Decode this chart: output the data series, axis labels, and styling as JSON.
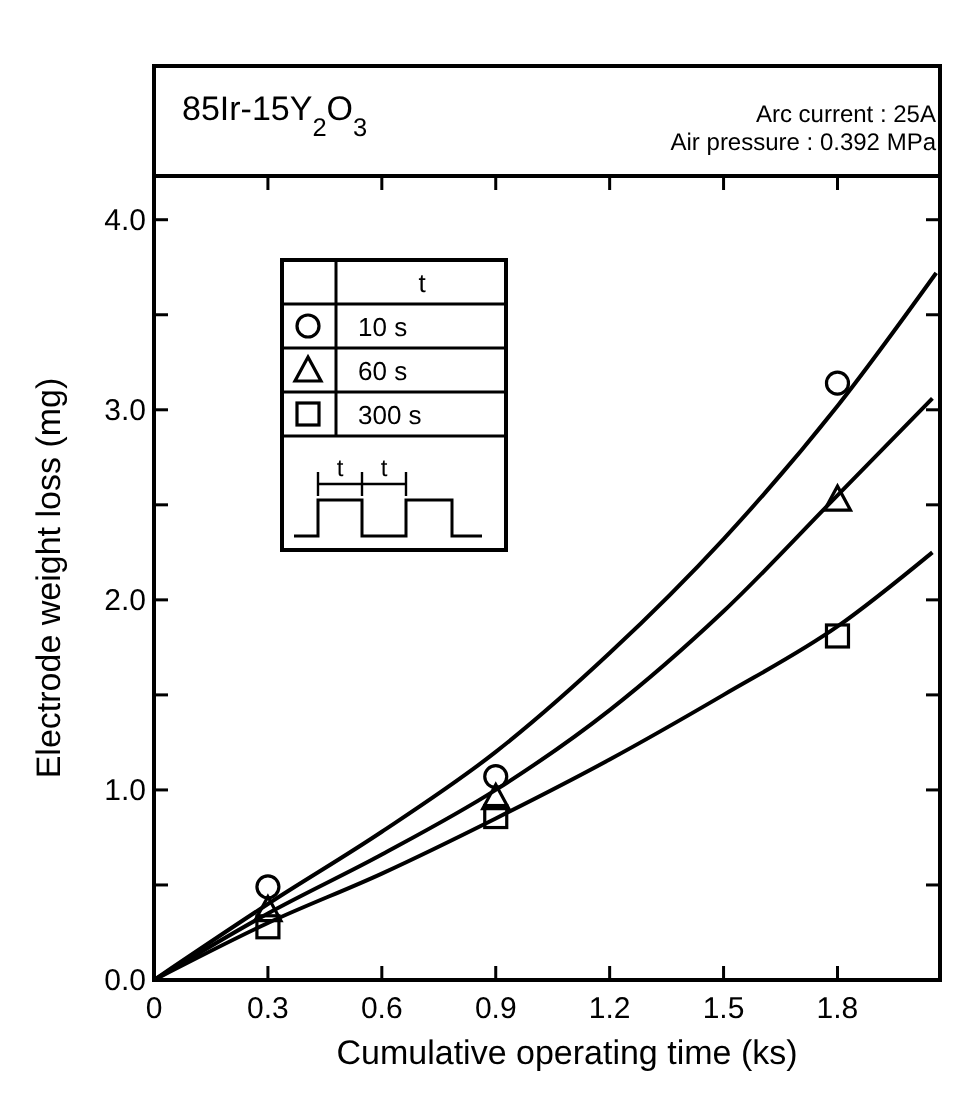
{
  "chart_data": {
    "type": "scatter",
    "title": "85Ir-15Y$_{2}$O$_{3}$",
    "annotations": [
      "Arc current : 25A",
      "Air pressure : 0.392 MPa",
      "t",
      "t"
    ],
    "xlabel": "Cumulative operating time (ks)",
    "ylabel": "Electrode weight loss (mg)",
    "xlim": [
      0,
      2.07
    ],
    "ylim": [
      0,
      4.23
    ],
    "xticks": [
      0,
      0.3,
      0.6,
      0.9,
      1.2,
      1.5,
      1.8
    ],
    "yticks": [
      {
        "value": 0,
        "label": "0.0"
      },
      {
        "value": 0.5,
        "label": null
      },
      {
        "value": 1,
        "label": "1.0"
      },
      {
        "value": 1.5,
        "label": null
      },
      {
        "value": 2,
        "label": "2.0"
      },
      {
        "value": 2.5,
        "label": null
      },
      {
        "value": 3,
        "label": "3.0"
      },
      {
        "value": 3.5,
        "label": null
      },
      {
        "value": 4,
        "label": "4.0"
      }
    ],
    "grid": false,
    "legend": "top left",
    "legend_title": "t",
    "series": [
      {
        "name": "10 s",
        "color": "#000000",
        "marker": "circle",
        "x": [
          0.3,
          0.9,
          1.8
        ],
        "values": [
          0.49,
          1.07,
          3.14
        ]
      },
      {
        "name": "60 s",
        "color": "#000000",
        "marker": "triangle",
        "x": [
          0.3,
          0.9,
          1.8
        ],
        "values": [
          0.37,
          0.96,
          2.53
        ]
      },
      {
        "name": "300 s",
        "color": "#000000",
        "marker": "square",
        "x": [
          0.3,
          0.9,
          1.8
        ],
        "values": [
          0.28,
          0.86,
          1.81
        ]
      },
      {
        "type": "line",
        "color": "#000000",
        "marker": "none",
        "x": [
          0,
          0.3,
          0.6,
          0.9,
          1.2,
          1.5,
          1.8,
          2.06
        ],
        "values": [
          0,
          0.4,
          0.78,
          1.2,
          1.72,
          2.32,
          3.02,
          3.72
        ]
      },
      {
        "type": "line",
        "color": "#000000",
        "marker": "none",
        "x": [
          0,
          0.3,
          0.6,
          0.9,
          1.2,
          1.5,
          1.8,
          2.05
        ],
        "values": [
          0,
          0.35,
          0.66,
          1.0,
          1.42,
          1.94,
          2.55,
          3.06
        ]
      },
      {
        "type": "line",
        "color": "#000000",
        "marker": "none",
        "x": [
          0,
          0.3,
          0.6,
          0.9,
          1.2,
          1.5,
          1.8,
          2.05
        ],
        "values": [
          0,
          0.3,
          0.56,
          0.85,
          1.16,
          1.5,
          1.86,
          2.25
        ]
      }
    ]
  }
}
